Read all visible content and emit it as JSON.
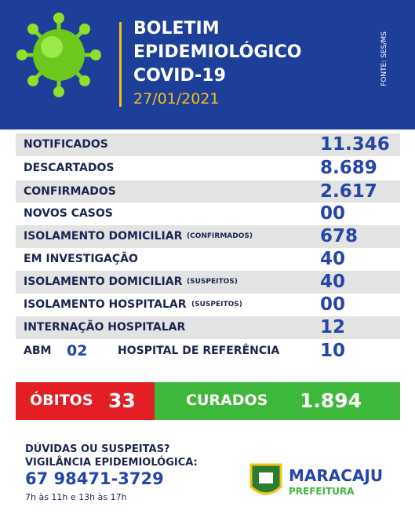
{
  "header": {
    "title_lines": [
      "BOLETIM",
      "EPIDEMIOLÓGICO",
      "COVID-19"
    ],
    "date": "27/01/2021",
    "source": "FONTE: SES/MS"
  },
  "rows": [
    {
      "label": "NOTIFICADOS",
      "value": "11.346"
    },
    {
      "label": "DESCARTADOS",
      "value": "8.689"
    },
    {
      "label": "CONFIRMADOS",
      "value": "2.617"
    },
    {
      "label": "NOVOS CASOS",
      "value": "00"
    },
    {
      "label": "ISOLAMENTO DOMICILIAR",
      "note": "(CONFIRMADOS)",
      "value": "678"
    },
    {
      "label": "EM INVESTIGAÇÃO",
      "value": "40"
    },
    {
      "label": "ISOLAMENTO DOMICILIAR",
      "note": "(SUSPEITOS)",
      "value": "40"
    },
    {
      "label": "ISOLAMENTO HOSPITALAR",
      "note": "(SUSPEITOS)",
      "value": "00"
    },
    {
      "label": "INTERNAÇÃO HOSPITALAR",
      "value": "12"
    }
  ],
  "last_row": {
    "label_a": "ABM",
    "value_a": "02",
    "label_b": "HOSPITAL DE REFERÊNCIA",
    "value_b": "10"
  },
  "totals": {
    "deaths_label": "ÓBITOS",
    "deaths": "33",
    "cured_label": "CURADOS",
    "cured": "1.894"
  },
  "footer": {
    "question": "DÚVIDAS OU SUSPEITAS?",
    "service": "VIGILÂNCIA EPIDEMIOLÓGICA:",
    "phone": "67 98471-3729",
    "hours": "7h às 11h e 13h às 17h",
    "city": "MARACAJU",
    "org": "PREFEITURA"
  }
}
